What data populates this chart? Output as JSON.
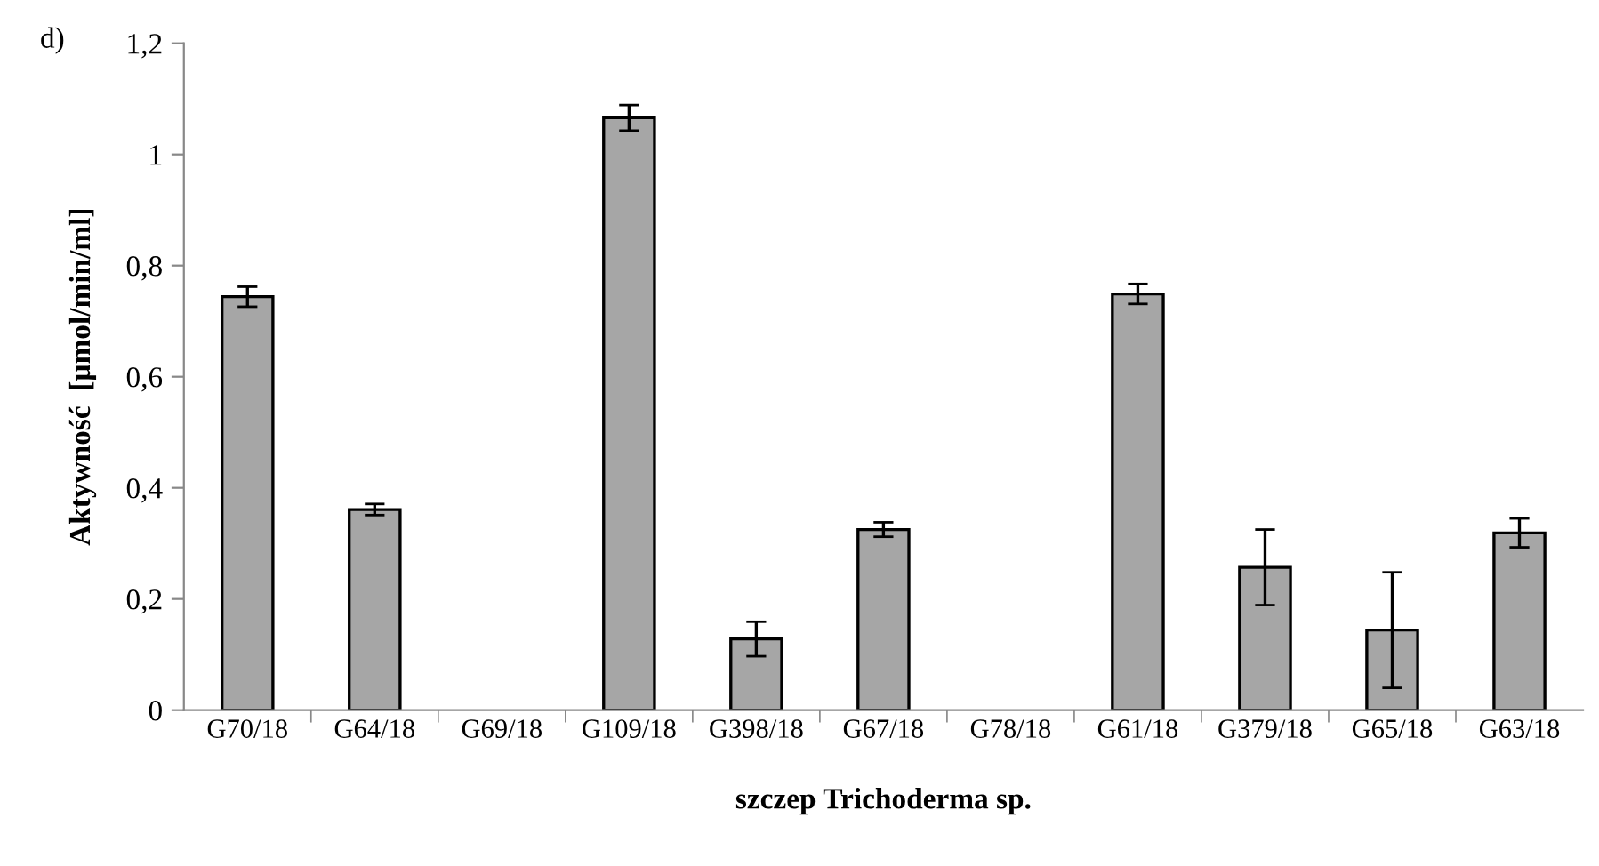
{
  "chart_data": {
    "type": "bar",
    "categories": [
      "G70/18",
      "G64/18",
      "G69/18",
      "G109/18",
      "G398/18",
      "G67/18",
      "G78/18",
      "G61/18",
      "G379/18",
      "G65/18",
      "G63/18"
    ],
    "values": [
      0.744,
      0.361,
      null,
      1.066,
      0.128,
      0.325,
      null,
      0.749,
      0.257,
      0.144,
      0.319
    ],
    "errors": [
      0.018,
      0.01,
      null,
      0.023,
      0.031,
      0.013,
      null,
      0.018,
      0.068,
      0.104,
      0.026
    ],
    "color": "#a6a6a6",
    "xlabel": "szczep Trichoderma sp.",
    "ylabel": "Aktywność  [µmol/min/ml]",
    "annotations": [
      "d)"
    ],
    "ylim": [
      0,
      1.2
    ],
    "yticks": [
      {
        "value": 0,
        "label": "0"
      },
      {
        "value": 0.2,
        "label": "0,2"
      },
      {
        "value": 0.4,
        "label": "0,4"
      },
      {
        "value": 0.6,
        "label": "0,6"
      },
      {
        "value": 0.8,
        "label": "0,8"
      },
      {
        "value": 1,
        "label": "1"
      },
      {
        "value": 1.2,
        "label": "1,2"
      }
    ],
    "grid": false,
    "legend": false
  }
}
